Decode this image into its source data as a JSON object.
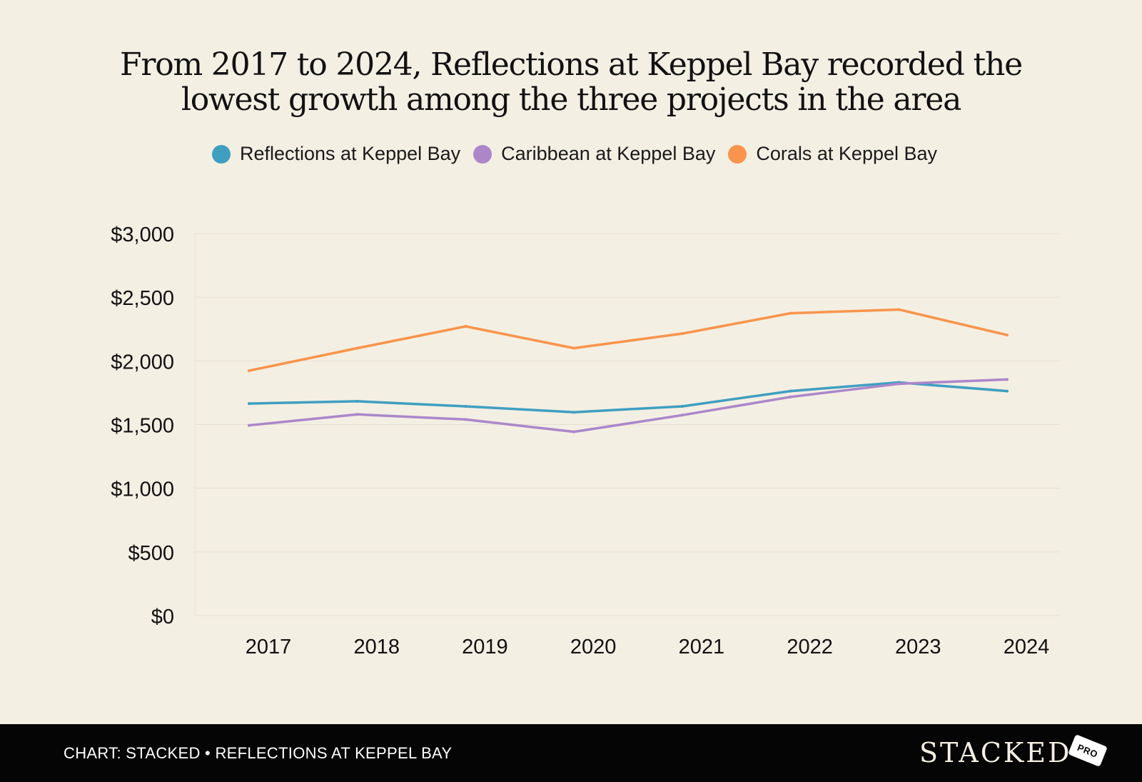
{
  "title_lines": [
    "From 2017 to 2024, Reflections at Keppel Bay recorded the",
    "lowest growth among the three projects in the area"
  ],
  "footer": {
    "caption": "CHART: STACKED • REFLECTIONS AT KEPPEL BAY",
    "brand": "STACKED",
    "badge": "PRO"
  },
  "colors": {
    "background": "#f4efe3",
    "footer": "#050505",
    "grid": "#e6e0d2"
  },
  "chart_data": {
    "type": "line",
    "title": "From 2017 to 2024, Reflections at Keppel Bay recorded the lowest growth among the three projects in the area",
    "xlabel": "",
    "ylabel": "",
    "categories": [
      "2017",
      "2018",
      "2019",
      "2020",
      "2021",
      "2022",
      "2023",
      "2024"
    ],
    "ylim": [
      0,
      3000
    ],
    "yticks": [
      0,
      500,
      1000,
      1500,
      2000,
      2500,
      3000
    ],
    "ytick_labels": [
      "$0",
      "$500",
      "$1,000",
      "$1,500",
      "$2,000",
      "$2,500",
      "$3,000"
    ],
    "grid": true,
    "legend_position": "top-center",
    "series": [
      {
        "name": "Reflections at Keppel Bay",
        "color": "#3f9fc1",
        "values": [
          1665,
          1683,
          1643,
          1597,
          1643,
          1763,
          1831,
          1763
        ]
      },
      {
        "name": "Caribbean at Keppel Bay",
        "color": "#ab87ca",
        "values": [
          1494,
          1580,
          1540,
          1443,
          1574,
          1717,
          1820,
          1854
        ]
      },
      {
        "name": "Corals at Keppel Bay",
        "color": "#f9944c",
        "values": [
          1923,
          2100,
          2271,
          2100,
          2214,
          2374,
          2403,
          2203
        ]
      }
    ]
  }
}
